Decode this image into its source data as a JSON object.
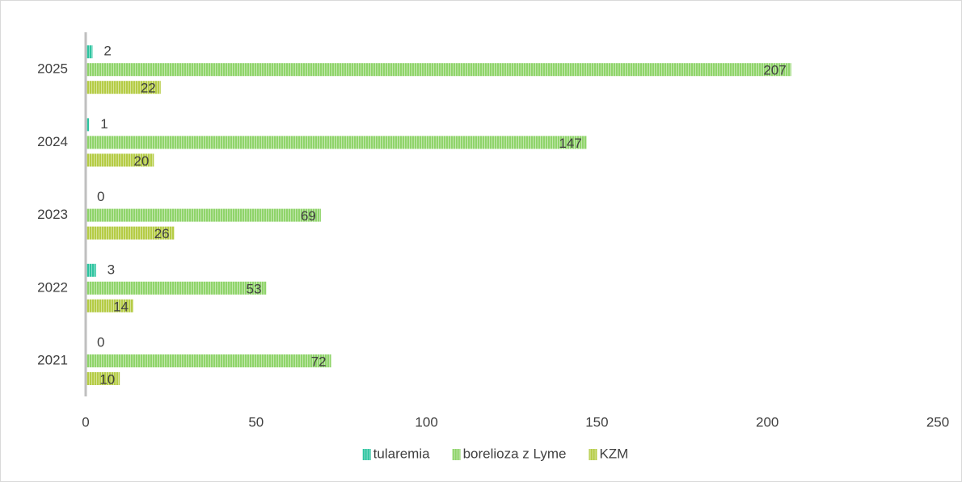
{
  "chart_data": {
    "type": "hbar",
    "categories": [
      "2021",
      "2022",
      "2023",
      "2024",
      "2025"
    ],
    "series": [
      {
        "name": "tularemia",
        "color": "#2ec4a0",
        "values": [
          0,
          3,
          0,
          1,
          2
        ]
      },
      {
        "name": "borelioza z Lyme",
        "color": "#8fd46a",
        "values": [
          72,
          53,
          69,
          147,
          207
        ]
      },
      {
        "name": "KZM",
        "color": "#b5cc45",
        "values": [
          10,
          14,
          26,
          20,
          22
        ]
      }
    ],
    "xlim": [
      0,
      250
    ],
    "xticks": [
      0,
      50,
      100,
      150,
      200,
      250
    ],
    "grid": false,
    "legend": "bottom"
  }
}
